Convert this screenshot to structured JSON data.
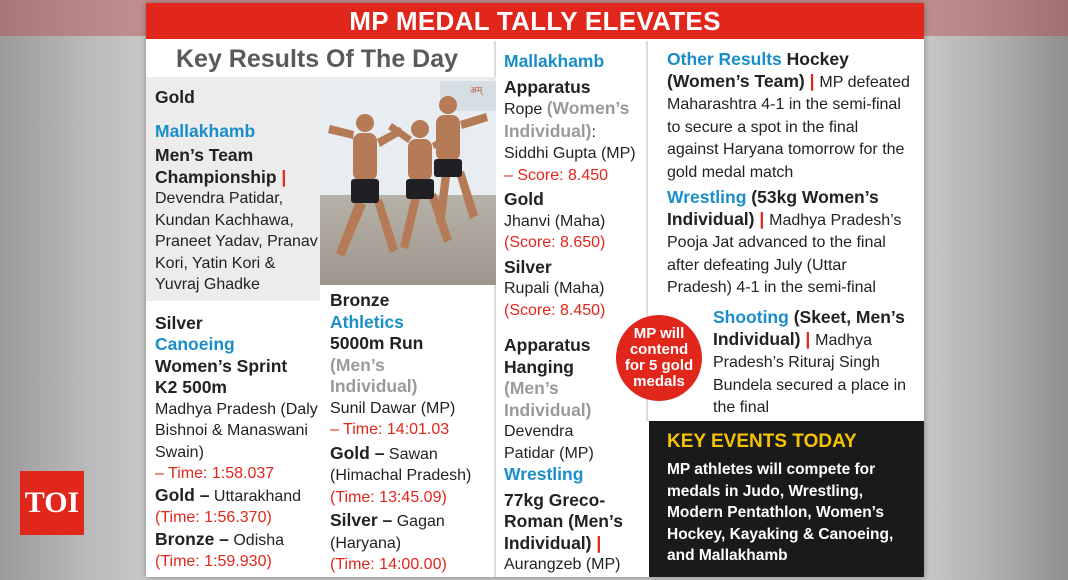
{
  "header": {
    "title": "MP MEDAL TALLY ELEVATES"
  },
  "brand": {
    "logo_text": "TOI",
    "logo_color": "#e1261c"
  },
  "colors": {
    "accent_red": "#e1261c",
    "accent_blue": "#1a8ec8",
    "events_yellow": "#f5c400"
  },
  "col1": {
    "section_title": "Key Results Of The Day",
    "gold_heading": "Gold",
    "gold_sport": "Mallakhamb",
    "gold_event": "Men’s Team Championship",
    "gold_winners": "Devendra Patidar, Kundan Kachhawa, Praneet Yadav, Pranav Kori, Yatin Kori & Yuvraj Ghadke",
    "silver_heading": "Silver",
    "silver_sport": "Canoeing",
    "silver_event": "Women’s Sprint K2 500m",
    "silver_team": "Madhya Pradesh (Daly Bishnoi & Manaswani Swain)",
    "silver_time": "– Time: 1:58.037",
    "gold2_label": "Gold –",
    "gold2_team": "Uttarakhand",
    "gold2_time": "(Time: 1:56.370)",
    "bronze_label": "Bronze –",
    "bronze_team": "Odisha",
    "bronze_time": "(Time: 1:59.930)"
  },
  "col2": {
    "bronze_heading": "Bronze",
    "sport": "Athletics",
    "event": "5000m Run",
    "category": "(Men’s Individual)",
    "winner": "Sunil Dawar (MP)",
    "winner_time": "– Time: 14:01.03",
    "gold_label": "Gold –",
    "gold_name": "Sawan (Himachal Pradesh)",
    "gold_time": "(Time: 13:45.09)",
    "silver_label": "Silver –",
    "silver_name": "Gagan (Haryana)",
    "silver_time": "(Time: 14:00.00)"
  },
  "col3": {
    "sport": "Mallakhamb",
    "apparatus": "Apparatus",
    "rope_label": "Rope",
    "rope_cat": "(Women’s Individual)",
    "rope_winner": "Siddhi Gupta (MP)",
    "rope_score": "– Score: 8.450",
    "gold_heading": "Gold",
    "gold_name": "Jhanvi (Maha)",
    "gold_score": "(Score: 8.650)",
    "silver_heading": "Silver",
    "silver_name": "Rupali (Maha)",
    "silver_score": "(Score: 8.450)",
    "hanging_title": "Apparatus Hanging",
    "hanging_cat": "(Men’s Individual)",
    "hanging_winner": "Devendra Patidar (MP)",
    "wrestling_sport": "Wrestling",
    "wrestling_event": "77kg Greco-Roman (Men’s Individual)",
    "wrestling_winner": "Aurangzeb (MP)"
  },
  "col4": {
    "other_label": "Other Results",
    "hockey_title": "Hockey (Women’s Team)",
    "hockey_text": "MP defeated Maharashtra 4-1 in the semi-final to secure a spot in the final against Haryana tomorrow for the gold medal match",
    "wrestling_label": "Wrestling",
    "wrestling_cat": "(53kg Women’s Individual)",
    "wrestling_text": "Madhya Pradesh’s Pooja Jat advanced to the final after defeating July (Uttar Pradesh) 4-1 in the semi-final",
    "shooting_label": "Shooting",
    "shooting_cat": "(Skeet, Men’s Individual)",
    "shooting_text": "Madhya Pradesh’s Rituraj Singh Bundela secured a place in the final",
    "badge": "MP will contend for 5 gold medals"
  },
  "events": {
    "title": "KEY EVENTS TODAY",
    "body": "MP athletes will compete for medals in Judo, Wrestling, Modern Pentathlon, Women’s Hockey, Kayaking & Canoeing, and Mallakhamb"
  }
}
